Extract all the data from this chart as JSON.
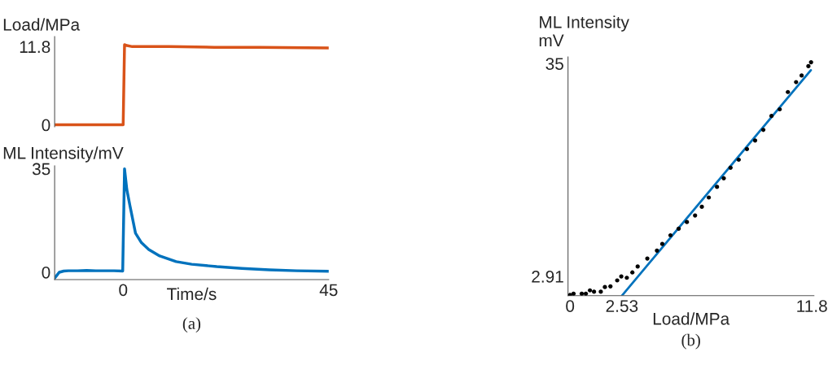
{
  "chart_data": [
    {
      "type": "line",
      "ylabel": "Load/MPa",
      "xlim": [
        -15,
        45
      ],
      "ylim": [
        -0.3,
        13.3
      ],
      "yticks": [
        0,
        11.8
      ],
      "tick_labels": "y",
      "grid": false,
      "series": [
        {
          "color": "#d95319",
          "x": [
            -15,
            0,
            0.3,
            0.6,
            2,
            10,
            20,
            30,
            45
          ],
          "values": [
            0,
            0,
            12.1,
            12.0,
            11.8,
            11.8,
            11.7,
            11.7,
            11.6
          ]
        }
      ]
    },
    {
      "type": "line",
      "ylabel": "ML Intensity/mV",
      "xlabel": "Time/s",
      "xlim": [
        -15,
        45
      ],
      "ylim": [
        -2.5,
        36
      ],
      "xticks": [
        0,
        45
      ],
      "yticks": [
        0,
        35
      ],
      "grid": false,
      "annotations": [
        "(a)"
      ],
      "series": [
        {
          "color": "#0072bd",
          "x": [
            -15,
            -14.5,
            -14,
            -13,
            -12,
            -10,
            -8,
            -6,
            -4,
            -2,
            -0.1,
            0.3,
            0.8,
            1.5,
            2.7,
            4,
            5.6,
            8,
            11.6,
            15,
            20.5,
            26,
            32,
            38,
            45
          ],
          "values": [
            -2,
            -1,
            0,
            0.4,
            0.5,
            0.5,
            0.6,
            0.5,
            0.5,
            0.5,
            0.4,
            35,
            28,
            22.4,
            13.2,
            10,
            7.7,
            5.5,
            3.6,
            2.7,
            1.9,
            1.3,
            0.8,
            0.5,
            0.3
          ]
        }
      ]
    },
    {
      "type": "scatter",
      "ylabel": "ML Intensity\nmV",
      "xlabel": "Load/MPa",
      "xlim": [
        -0.1,
        11.9
      ],
      "ylim": [
        0,
        36
      ],
      "xticks": [
        0,
        2.53,
        11.8
      ],
      "yticks": [
        2.91,
        35
      ],
      "grid": false,
      "annotations": [
        "(b)"
      ],
      "series": [
        {
          "type": "scatter",
          "marker": "circle",
          "color": "#000000",
          "x": [
            0,
            0.17,
            0.57,
            0.77,
            0.97,
            1.17,
            1.5,
            1.7,
            1.97,
            2.3,
            2.5,
            2.77,
            3.04,
            3.3,
            3.77,
            4.24,
            4.5,
            4.9,
            5.3,
            5.7,
            6.1,
            6.43,
            6.77,
            7.17,
            7.5,
            7.83,
            8.23,
            8.63,
            9.03,
            9.43,
            9.83,
            10.23,
            10.63,
            11.03,
            11.3,
            11.63,
            11.76
          ],
          "values": [
            0.1,
            0.3,
            0.3,
            0.3,
            0.8,
            0.6,
            0.6,
            1.3,
            1.4,
            2.3,
            2.9,
            2.7,
            3.5,
            4.4,
            5.6,
            6.8,
            7.8,
            9.1,
            10.1,
            11.1,
            12.1,
            13.4,
            14.8,
            16.4,
            17.7,
            19.3,
            20.5,
            22.1,
            23.4,
            25.0,
            27.1,
            28.1,
            30.7,
            32.2,
            33.2,
            34.6,
            35.2
          ]
        },
        {
          "type": "line",
          "color": "#0072bd",
          "x": [
            2.53,
            11.75
          ],
          "values": [
            0,
            34
          ]
        }
      ]
    }
  ]
}
